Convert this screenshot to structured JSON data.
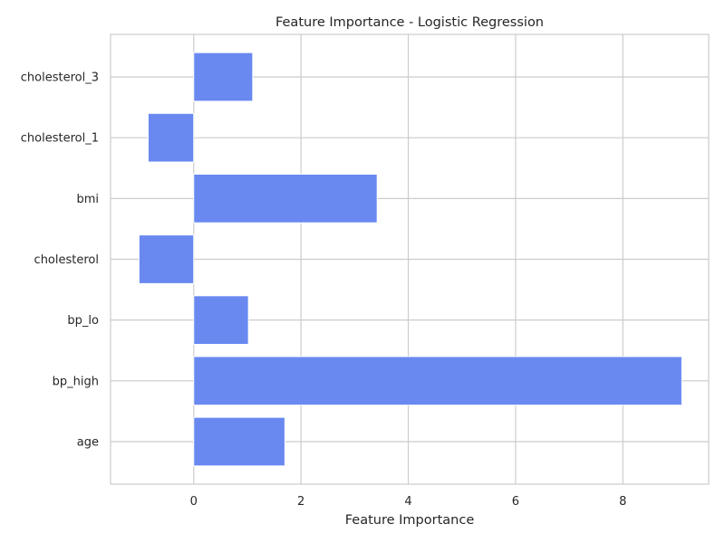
{
  "chart_data": {
    "type": "bar",
    "orientation": "horizontal",
    "title": "Feature Importance - Logistic Regression",
    "xlabel": "Feature Importance",
    "ylabel": "",
    "categories": [
      "age",
      "bp_high",
      "bp_lo",
      "cholesterol",
      "bmi",
      "cholesterol_1",
      "cholesterol_3"
    ],
    "values": [
      1.7,
      9.1,
      1.02,
      -1.02,
      3.42,
      -0.85,
      1.1
    ],
    "xlim": [
      -1.55,
      9.6
    ],
    "xticks": [
      0,
      2,
      4,
      6,
      8
    ],
    "grid": true,
    "bar_color": "#6989f1",
    "grid_color": "#cccccc",
    "background": "#ffffff"
  }
}
